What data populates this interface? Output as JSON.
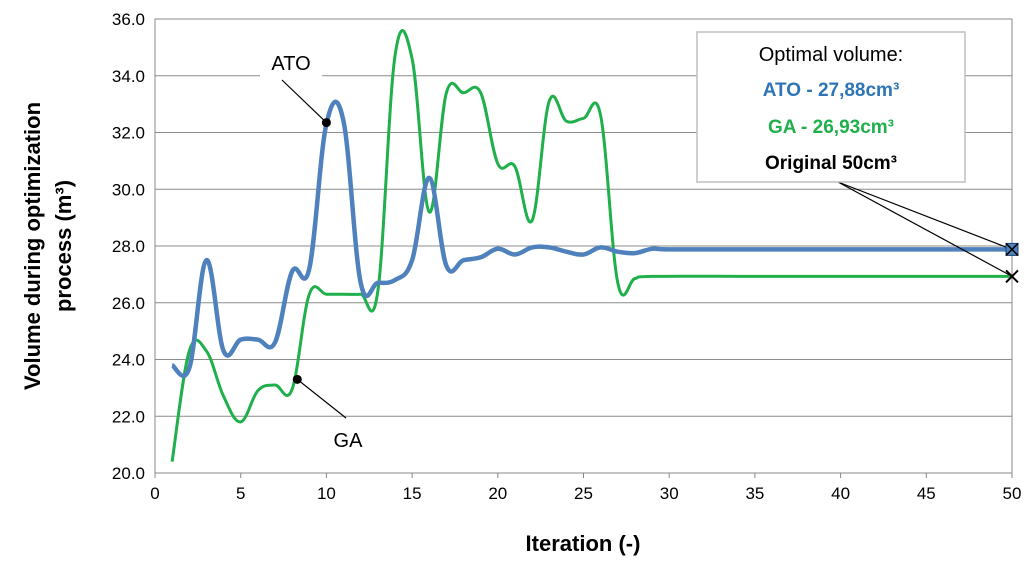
{
  "chart_data": {
    "type": "line",
    "xlabel": "Iteration (-)",
    "ylabel_line1": "Volume during optimization",
    "ylabel_line2": "process (m³)",
    "xlim": [
      0,
      50
    ],
    "ylim": [
      20,
      36
    ],
    "x_ticks": [
      "0",
      "5",
      "10",
      "15",
      "20",
      "25",
      "30",
      "35",
      "40",
      "45",
      "50"
    ],
    "y_ticks": [
      "20.0",
      "22.0",
      "24.0",
      "26.0",
      "28.0",
      "30.0",
      "32.0",
      "34.0",
      "36.0"
    ],
    "grid": "horizontal",
    "series": [
      {
        "name": "ATO",
        "color": "#4f81bd",
        "points": [
          [
            1,
            23.8
          ],
          [
            2,
            23.7
          ],
          [
            3,
            27.5
          ],
          [
            4,
            24.3
          ],
          [
            5,
            24.7
          ],
          [
            6,
            24.7
          ],
          [
            7,
            24.6
          ],
          [
            8,
            27.1
          ],
          [
            9,
            27.2
          ],
          [
            10,
            32.3
          ],
          [
            11,
            32.4
          ],
          [
            12,
            26.7
          ],
          [
            13,
            26.7
          ],
          [
            14,
            26.8
          ],
          [
            15,
            27.5
          ],
          [
            16,
            30.4
          ],
          [
            17,
            27.3
          ],
          [
            18,
            27.5
          ],
          [
            19,
            27.6
          ],
          [
            20,
            27.9
          ],
          [
            21,
            27.7
          ],
          [
            22,
            27.95
          ],
          [
            23,
            27.95
          ],
          [
            24,
            27.8
          ],
          [
            25,
            27.7
          ],
          [
            26,
            27.95
          ],
          [
            27,
            27.8
          ],
          [
            28,
            27.75
          ],
          [
            29,
            27.9
          ],
          [
            30,
            27.88
          ],
          [
            35,
            27.88
          ],
          [
            40,
            27.88
          ],
          [
            45,
            27.88
          ],
          [
            50,
            27.88
          ]
        ]
      },
      {
        "name": "GA",
        "color": "#1fb04c",
        "points": [
          [
            1,
            20.4
          ],
          [
            2,
            24.3
          ],
          [
            3,
            24.3
          ],
          [
            4,
            22.7
          ],
          [
            5,
            21.8
          ],
          [
            6,
            22.9
          ],
          [
            7,
            23.1
          ],
          [
            8,
            22.95
          ],
          [
            9,
            26.3
          ],
          [
            10,
            26.3
          ],
          [
            11,
            26.3
          ],
          [
            12,
            26.3
          ],
          [
            13,
            26.4
          ],
          [
            14,
            34.7
          ],
          [
            15,
            34.6
          ],
          [
            16,
            29.2
          ],
          [
            17,
            33.4
          ],
          [
            18,
            33.4
          ],
          [
            19,
            33.4
          ],
          [
            20,
            30.9
          ],
          [
            21,
            30.8
          ],
          [
            22,
            28.9
          ],
          [
            23,
            33.1
          ],
          [
            24,
            32.4
          ],
          [
            25,
            32.5
          ],
          [
            26,
            32.6
          ],
          [
            27,
            26.7
          ],
          [
            28,
            26.85
          ],
          [
            29,
            26.93
          ],
          [
            35,
            26.93
          ],
          [
            40,
            26.93
          ],
          [
            45,
            26.93
          ],
          [
            50,
            26.93
          ]
        ]
      }
    ],
    "annotations": [
      {
        "label": "ATO",
        "x": 10,
        "y": 32.35
      },
      {
        "label": "GA",
        "x": 8.3,
        "y": 23.3
      }
    ],
    "endpoint_markers": [
      {
        "x": 50,
        "y": 27.88,
        "color": "#4f81bd"
      },
      {
        "x": 50,
        "y": 26.93,
        "color": "#000000"
      }
    ],
    "legend_box": {
      "placement": "top-right",
      "title": "Optimal volume:",
      "lines": [
        {
          "text": "ATO - 27,88cm³",
          "color": "#2e75b6"
        },
        {
          "text": "GA - 26,93cm³",
          "color": "#1fb04c"
        },
        {
          "text": "Original 50cm³",
          "color": "#000000"
        }
      ]
    }
  }
}
